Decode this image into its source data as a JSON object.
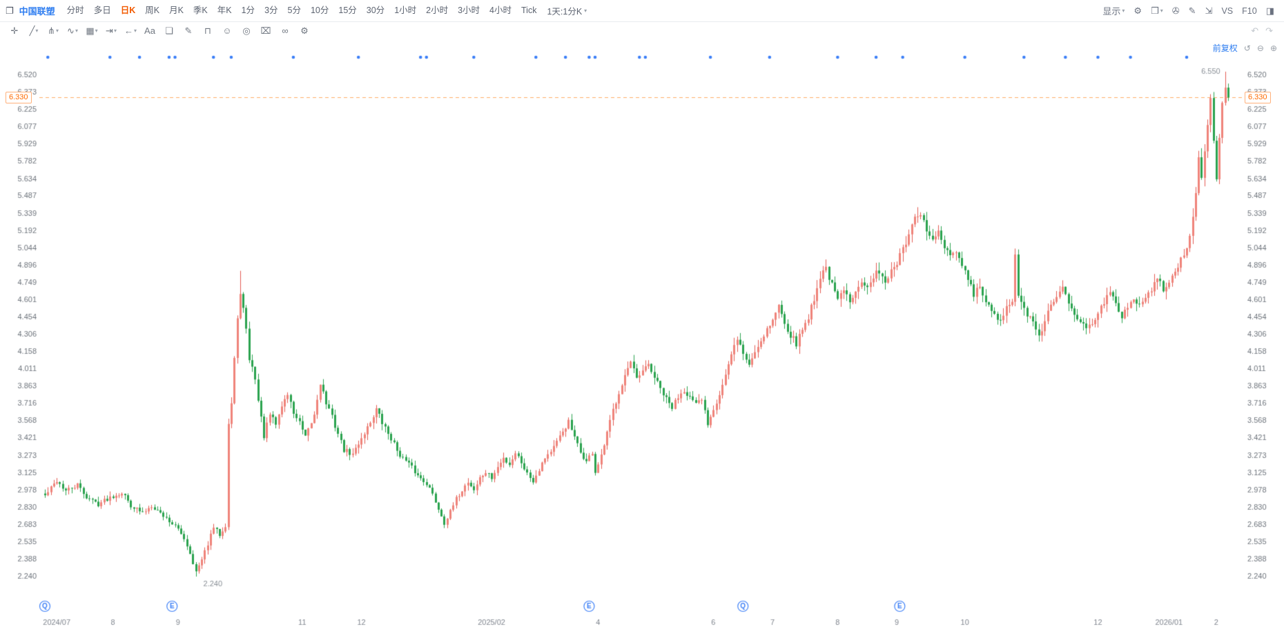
{
  "colors": {
    "up_fill": "#ef837a",
    "up_stroke": "#e25a50",
    "down": "#2aa24e",
    "blue": "#2e7df0",
    "marker_blue": "#3c7ff7",
    "orange": "#ff6a00",
    "dashed_line": "#ffad66",
    "axis_text": "#6e747c",
    "date_text": "#80868f",
    "annotation_text": "#8a9097"
  },
  "topbar": {
    "stock_name": "中国联塑",
    "tabs": [
      "分时",
      "多日",
      "日K",
      "周K",
      "月K",
      "季K",
      "年K",
      "1分",
      "3分",
      "5分",
      "10分",
      "15分",
      "30分",
      "1小时",
      "2小时",
      "3小时",
      "4小时",
      "Tick"
    ],
    "active_tab": "日K",
    "custom_period": "1天:1分K",
    "right": {
      "display_label": "显示",
      "icons": [
        {
          "name": "settings",
          "glyph": "⚙",
          "dropdown": false
        },
        {
          "name": "layout",
          "glyph": "❒",
          "dropdown": true
        },
        {
          "name": "screenshot",
          "glyph": "✇",
          "dropdown": false
        },
        {
          "name": "edit",
          "glyph": "✎",
          "dropdown": false
        },
        {
          "name": "fullscreen",
          "glyph": "⇲",
          "dropdown": false
        }
      ],
      "vs_label": "VS",
      "f10_label": "F10"
    }
  },
  "drawing_toolbar": {
    "tools": [
      {
        "name": "move-tool",
        "glyph": "✛",
        "dropdown": false
      },
      {
        "name": "trendline-tool",
        "glyph": "╱",
        "dropdown": true
      },
      {
        "name": "pitchfork-tool",
        "glyph": "⋔",
        "dropdown": true
      },
      {
        "name": "wave-tool",
        "glyph": "∿",
        "dropdown": true
      },
      {
        "name": "pattern-tool",
        "glyph": "▦",
        "dropdown": true
      },
      {
        "name": "measure-tool",
        "glyph": "⇥",
        "dropdown": true
      },
      {
        "name": "arrow-tool",
        "glyph": "←",
        "dropdown": true
      },
      {
        "name": "text-tool",
        "glyph": "Aa",
        "dropdown": false
      },
      {
        "name": "comment-tool",
        "glyph": "❏",
        "dropdown": false
      },
      {
        "name": "brush-tool",
        "glyph": "✎",
        "dropdown": false
      },
      {
        "name": "magnet-tool",
        "glyph": "⊓",
        "dropdown": false
      },
      {
        "name": "emoji-tool",
        "glyph": "☺",
        "dropdown": false
      },
      {
        "name": "target-tool",
        "glyph": "◎",
        "dropdown": false
      },
      {
        "name": "trash-tool",
        "glyph": "⌧",
        "dropdown": false
      },
      {
        "name": "link-tool",
        "glyph": "∞",
        "dropdown": false
      },
      {
        "name": "settings-tool",
        "glyph": "⚙",
        "dropdown": false
      }
    ],
    "undo_glyph": "↶",
    "redo_glyph": "↷"
  },
  "chart": {
    "adjust_label": "前复权",
    "current_price": "6.330",
    "high_annotation": "6.550",
    "low_annotation": "2.240",
    "y_ticks": [
      "6.520",
      "6.373",
      "6.225",
      "6.077",
      "5.929",
      "5.782",
      "5.634",
      "5.487",
      "5.339",
      "5.192",
      "5.044",
      "4.896",
      "4.749",
      "4.601",
      "4.454",
      "4.306",
      "4.158",
      "4.011",
      "3.863",
      "3.716",
      "3.568",
      "3.421",
      "3.273",
      "3.125",
      "2.978",
      "2.830",
      "2.683",
      "2.535",
      "2.388",
      "2.240"
    ],
    "x_labels": [
      {
        "label": "2024/07",
        "day": 4
      },
      {
        "label": "8",
        "day": 23
      },
      {
        "label": "9",
        "day": 45
      },
      {
        "label": "11",
        "day": 87
      },
      {
        "label": "12",
        "day": 107
      },
      {
        "label": "2025/02",
        "day": 151
      },
      {
        "label": "4",
        "day": 187
      },
      {
        "label": "6",
        "day": 226
      },
      {
        "label": "7",
        "day": 246
      },
      {
        "label": "8",
        "day": 268
      },
      {
        "label": "9",
        "day": 288
      },
      {
        "label": "10",
        "day": 311
      },
      {
        "label": "12",
        "day": 356
      },
      {
        "label": "2026/01",
        "day": 380
      },
      {
        "label": "2",
        "day": 396
      }
    ],
    "event_dots_days": [
      1,
      22,
      32,
      42,
      44,
      57,
      63,
      84,
      106,
      127,
      129,
      145,
      166,
      176,
      184,
      186,
      201,
      203,
      225,
      245,
      268,
      281,
      290,
      311,
      331,
      345,
      356,
      367,
      386
    ],
    "bottom_markers": [
      {
        "type": "Q",
        "day": 0
      },
      {
        "type": "E",
        "day": 43
      },
      {
        "type": "E",
        "day": 184
      },
      {
        "type": "Q",
        "day": 236
      },
      {
        "type": "E",
        "day": 289
      }
    ]
  },
  "chart_data": {
    "type": "candlestick",
    "symbol": "中国联塑",
    "period": "日K",
    "adjust_mode": "前复权",
    "y_range": [
      2.24,
      6.55
    ],
    "current_price": 6.33,
    "num_candles": 401,
    "close_keyframes": [
      [
        0,
        2.93
      ],
      [
        4,
        3.06
      ],
      [
        7,
        2.97
      ],
      [
        11,
        3.02
      ],
      [
        14,
        2.92
      ],
      [
        18,
        2.86
      ],
      [
        22,
        2.92
      ],
      [
        26,
        2.96
      ],
      [
        29,
        2.85
      ],
      [
        33,
        2.78
      ],
      [
        36,
        2.85
      ],
      [
        40,
        2.76
      ],
      [
        44,
        2.67
      ],
      [
        47,
        2.57
      ],
      [
        49,
        2.44
      ],
      [
        51,
        2.28
      ],
      [
        53,
        2.38
      ],
      [
        55,
        2.52
      ],
      [
        57,
        2.66
      ],
      [
        59,
        2.6
      ],
      [
        61,
        2.68
      ],
      [
        62,
        3.55
      ],
      [
        63,
        3.72
      ],
      [
        64,
        4.1
      ],
      [
        65,
        4.42
      ],
      [
        66,
        4.68
      ],
      [
        67,
        4.52
      ],
      [
        68,
        4.33
      ],
      [
        69,
        4.1
      ],
      [
        71,
        3.94
      ],
      [
        72,
        3.74
      ],
      [
        74,
        3.44
      ],
      [
        76,
        3.62
      ],
      [
        78,
        3.54
      ],
      [
        80,
        3.7
      ],
      [
        82,
        3.8
      ],
      [
        84,
        3.64
      ],
      [
        86,
        3.55
      ],
      [
        88,
        3.42
      ],
      [
        91,
        3.62
      ],
      [
        93,
        3.9
      ],
      [
        95,
        3.72
      ],
      [
        97,
        3.6
      ],
      [
        99,
        3.46
      ],
      [
        101,
        3.32
      ],
      [
        104,
        3.28
      ],
      [
        106,
        3.38
      ],
      [
        108,
        3.47
      ],
      [
        110,
        3.56
      ],
      [
        112,
        3.67
      ],
      [
        114,
        3.55
      ],
      [
        117,
        3.42
      ],
      [
        119,
        3.32
      ],
      [
        121,
        3.25
      ],
      [
        124,
        3.17
      ],
      [
        126,
        3.1
      ],
      [
        129,
        3.04
      ],
      [
        131,
        2.94
      ],
      [
        133,
        2.82
      ],
      [
        135,
        2.7
      ],
      [
        137,
        2.79
      ],
      [
        139,
        2.9
      ],
      [
        141,
        2.98
      ],
      [
        143,
        3.05
      ],
      [
        145,
        2.98
      ],
      [
        147,
        3.08
      ],
      [
        149,
        3.13
      ],
      [
        151,
        3.08
      ],
      [
        153,
        3.17
      ],
      [
        155,
        3.25
      ],
      [
        157,
        3.2
      ],
      [
        159,
        3.3
      ],
      [
        161,
        3.22
      ],
      [
        163,
        3.12
      ],
      [
        165,
        3.06
      ],
      [
        167,
        3.16
      ],
      [
        169,
        3.26
      ],
      [
        171,
        3.31
      ],
      [
        173,
        3.38
      ],
      [
        175,
        3.48
      ],
      [
        177,
        3.56
      ],
      [
        179,
        3.42
      ],
      [
        181,
        3.3
      ],
      [
        183,
        3.22
      ],
      [
        185,
        3.3
      ],
      [
        186,
        3.13
      ],
      [
        188,
        3.26
      ],
      [
        190,
        3.46
      ],
      [
        192,
        3.66
      ],
      [
        194,
        3.82
      ],
      [
        196,
        3.96
      ],
      [
        198,
        4.06
      ],
      [
        200,
        3.92
      ],
      [
        202,
        3.98
      ],
      [
        204,
        4.05
      ],
      [
        206,
        3.94
      ],
      [
        208,
        3.84
      ],
      [
        210,
        3.75
      ],
      [
        212,
        3.68
      ],
      [
        214,
        3.78
      ],
      [
        216,
        3.84
      ],
      [
        218,
        3.77
      ],
      [
        220,
        3.7
      ],
      [
        222,
        3.75
      ],
      [
        224,
        3.55
      ],
      [
        226,
        3.68
      ],
      [
        228,
        3.8
      ],
      [
        230,
        3.96
      ],
      [
        232,
        4.12
      ],
      [
        234,
        4.28
      ],
      [
        236,
        4.14
      ],
      [
        238,
        4.05
      ],
      [
        240,
        4.16
      ],
      [
        242,
        4.26
      ],
      [
        244,
        4.36
      ],
      [
        246,
        4.43
      ],
      [
        248,
        4.55
      ],
      [
        250,
        4.42
      ],
      [
        252,
        4.3
      ],
      [
        254,
        4.23
      ],
      [
        256,
        4.35
      ],
      [
        258,
        4.46
      ],
      [
        260,
        4.62
      ],
      [
        262,
        4.8
      ],
      [
        264,
        4.88
      ],
      [
        266,
        4.72
      ],
      [
        268,
        4.6
      ],
      [
        270,
        4.68
      ],
      [
        272,
        4.58
      ],
      [
        274,
        4.7
      ],
      [
        276,
        4.78
      ],
      [
        278,
        4.7
      ],
      [
        280,
        4.78
      ],
      [
        282,
        4.86
      ],
      [
        284,
        4.76
      ],
      [
        286,
        4.84
      ],
      [
        288,
        4.92
      ],
      [
        290,
        5.02
      ],
      [
        292,
        5.16
      ],
      [
        294,
        5.28
      ],
      [
        296,
        5.32
      ],
      [
        298,
        5.2
      ],
      [
        300,
        5.1
      ],
      [
        302,
        5.18
      ],
      [
        304,
        5.04
      ],
      [
        306,
        4.95
      ],
      [
        308,
        5.02
      ],
      [
        310,
        4.88
      ],
      [
        312,
        4.78
      ],
      [
        314,
        4.64
      ],
      [
        316,
        4.72
      ],
      [
        318,
        4.58
      ],
      [
        320,
        4.5
      ],
      [
        322,
        4.42
      ],
      [
        324,
        4.48
      ],
      [
        326,
        4.56
      ],
      [
        327,
        4.6
      ],
      [
        328,
        4.98
      ],
      [
        329,
        4.62
      ],
      [
        331,
        4.52
      ],
      [
        333,
        4.44
      ],
      [
        336,
        4.3
      ],
      [
        338,
        4.42
      ],
      [
        340,
        4.55
      ],
      [
        342,
        4.63
      ],
      [
        344,
        4.7
      ],
      [
        346,
        4.6
      ],
      [
        348,
        4.5
      ],
      [
        350,
        4.42
      ],
      [
        352,
        4.34
      ],
      [
        354,
        4.42
      ],
      [
        356,
        4.5
      ],
      [
        358,
        4.58
      ],
      [
        360,
        4.66
      ],
      [
        362,
        4.55
      ],
      [
        364,
        4.47
      ],
      [
        366,
        4.55
      ],
      [
        368,
        4.62
      ],
      [
        370,
        4.55
      ],
      [
        372,
        4.62
      ],
      [
        374,
        4.7
      ],
      [
        376,
        4.77
      ],
      [
        378,
        4.7
      ],
      [
        380,
        4.78
      ],
      [
        382,
        4.86
      ],
      [
        384,
        4.93
      ],
      [
        386,
        5.02
      ],
      [
        388,
        5.3
      ],
      [
        389,
        5.55
      ],
      [
        390,
        5.8
      ],
      [
        391,
        5.62
      ],
      [
        392,
        5.88
      ],
      [
        393,
        6.12
      ],
      [
        394,
        6.3
      ],
      [
        395,
        5.96
      ],
      [
        396,
        5.66
      ],
      [
        397,
        6.02
      ],
      [
        398,
        6.26
      ],
      [
        399,
        6.42
      ],
      [
        400,
        6.33
      ]
    ],
    "wick_overrides": [
      {
        "day": 51,
        "low": 2.24
      },
      {
        "day": 66,
        "high": 4.85
      },
      {
        "day": 296,
        "high": 5.35
      },
      {
        "day": 328,
        "high": 5.04
      },
      {
        "day": 399,
        "high": 6.55
      }
    ],
    "special": {
      "low_day": 51,
      "low": 2.24,
      "high_day": 399,
      "high": 6.55,
      "last_close": 6.33
    }
  }
}
